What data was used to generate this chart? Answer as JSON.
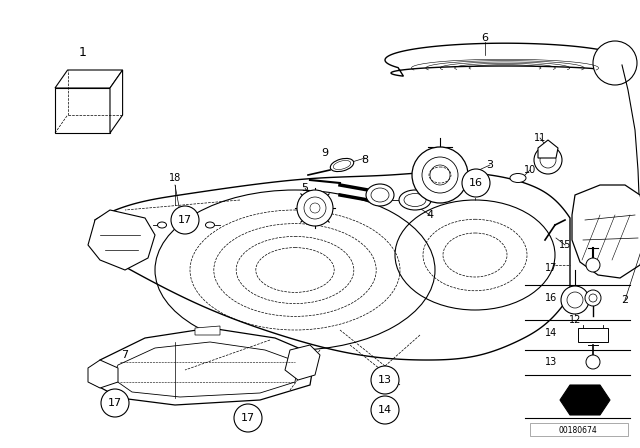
{
  "background_color": "#ffffff",
  "image_id": "00180674",
  "line_color": "#000000",
  "fig_w": 6.4,
  "fig_h": 4.48,
  "dpi": 100
}
